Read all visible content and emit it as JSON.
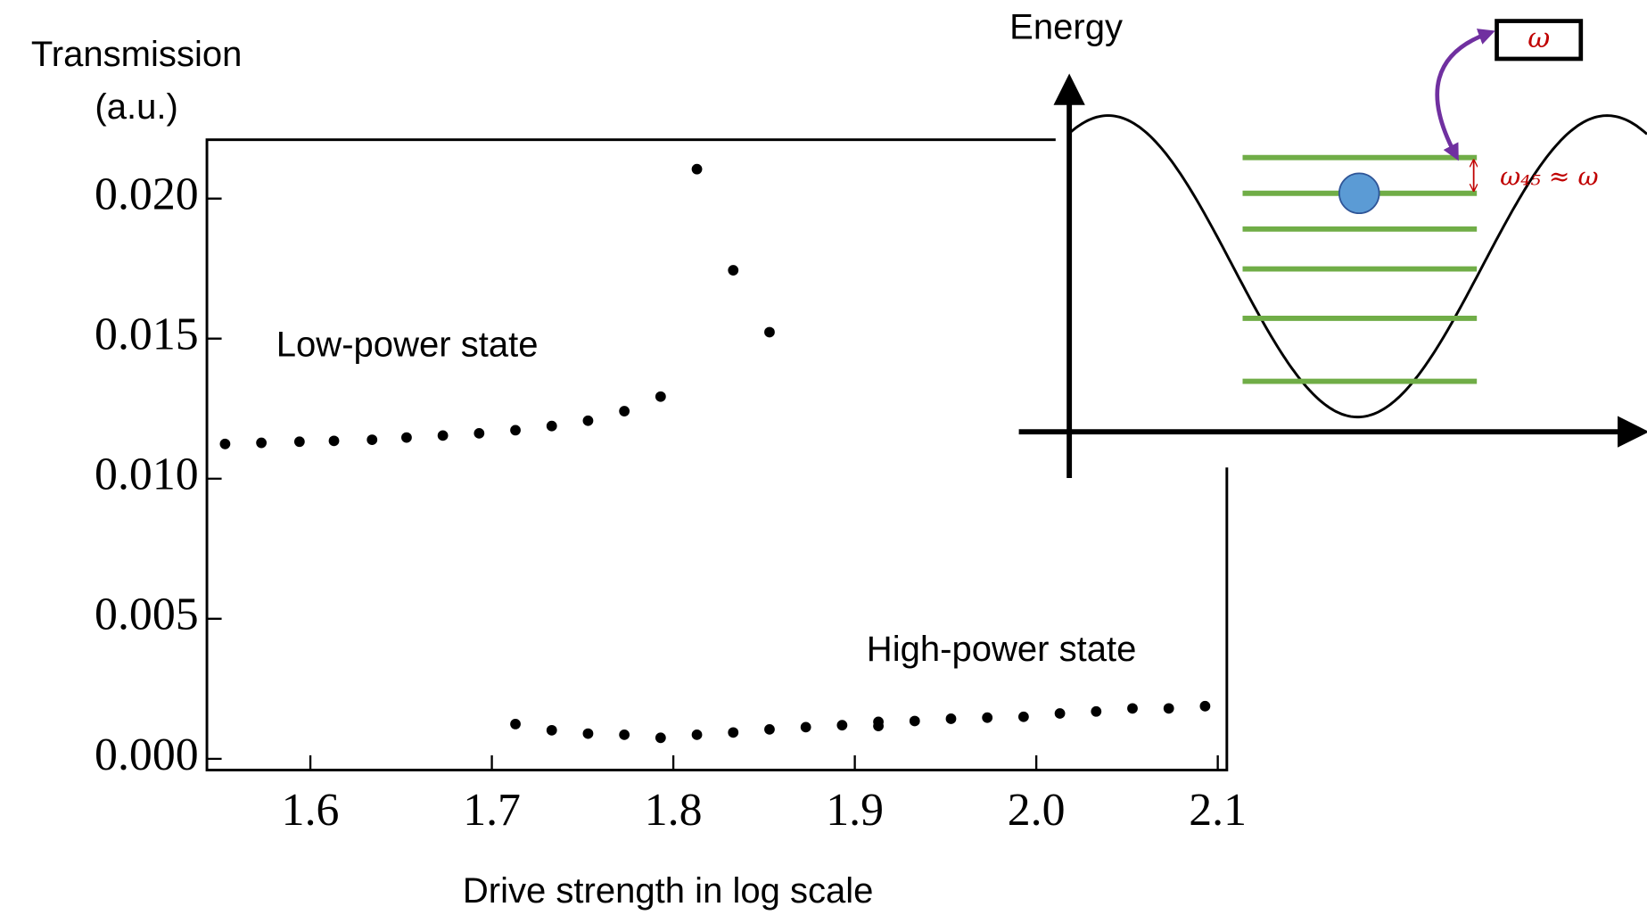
{
  "chart_data": {
    "type": "scatter",
    "ylabel": [
      "Transmission",
      "(a.u.)"
    ],
    "xlabel": "Drive strength in log scale",
    "xlim": [
      1.543,
      2.105
    ],
    "ylim": [
      -0.0004,
      0.0221
    ],
    "xticks": [
      1.6,
      1.7,
      1.8,
      1.9,
      {
        "value": 2.0,
        "label": "2.0"
      },
      2.1
    ],
    "yticks": [
      {
        "value": 0,
        "label": "0.000"
      },
      0.005,
      {
        "value": 0.01,
        "label": "0.010"
      },
      0.015,
      {
        "value": 0.02,
        "label": "0.020"
      }
    ],
    "series": [
      {
        "name": "Low-power state",
        "color": "#000000",
        "x": [
          1.553,
          1.573,
          1.594,
          1.613,
          1.634,
          1.653,
          1.673,
          1.693,
          1.713,
          1.733,
          1.753,
          1.773,
          1.793,
          1.813,
          1.833,
          1.853
        ],
        "values": [
          0.01124,
          0.01128,
          0.01132,
          0.01135,
          0.01139,
          0.01147,
          0.01154,
          0.01162,
          0.01173,
          0.01188,
          0.01207,
          0.01241,
          0.01293,
          0.02105,
          0.01744,
          0.01523
        ]
      },
      {
        "name": "High-power state",
        "color": "#000000",
        "x": [
          1.713,
          1.733,
          1.753,
          1.773,
          1.793,
          1.813,
          1.833,
          1.853,
          1.873,
          1.893,
          1.913,
          1.913,
          1.933,
          1.953,
          1.973,
          1.993,
          2.013,
          2.033,
          2.053,
          2.073,
          2.093
        ],
        "values": [
          0.00124,
          0.00102,
          0.0009,
          0.00086,
          0.00075,
          0.00086,
          0.00094,
          0.00105,
          0.00113,
          0.0012,
          0.00132,
          0.00117,
          0.00135,
          0.00143,
          0.00147,
          0.0015,
          0.00162,
          0.00169,
          0.0018,
          0.0018,
          0.00188
        ]
      }
    ]
  },
  "inset": {
    "y_axis_label": "Energy",
    "drive_label": "ω",
    "transition_label": "ω₄₅ ≈ ω"
  }
}
